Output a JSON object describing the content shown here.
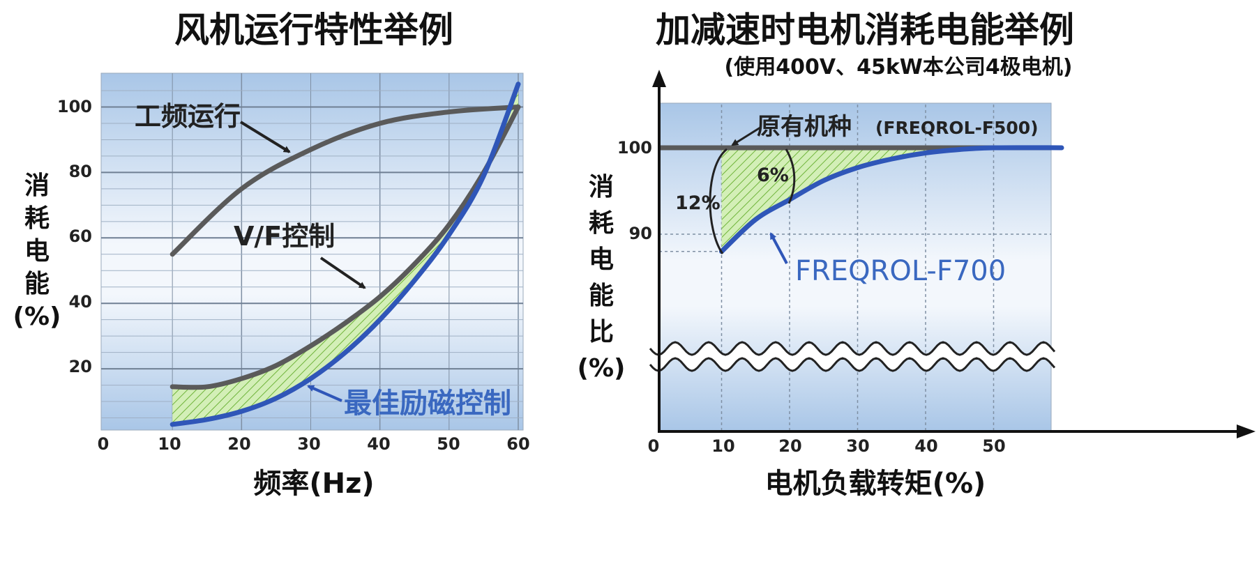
{
  "colors": {
    "gray_line": "#5a5a5a",
    "blue_line": "#2f56b8",
    "label_blue": "#3a68c0",
    "hatch_green": "#8ccf52",
    "bg_top": "#a9c6e7",
    "bg_mid": "#eef4fb"
  },
  "chart_data": [
    {
      "type": "line",
      "title": "风机运行特性举例",
      "xlabel": "频率(Hz)",
      "ylabel": "消耗电能(%)",
      "xlim": [
        0,
        60
      ],
      "ylim": [
        0,
        100
      ],
      "x_ticks": [
        "0",
        "10",
        "20",
        "30",
        "40",
        "50",
        "60"
      ],
      "y_ticks": [
        "20",
        "40",
        "60",
        "80",
        "100"
      ],
      "grid": true,
      "series": [
        {
          "name": "工频运行",
          "color": "#5a5a5a",
          "x": [
            10,
            20,
            30,
            40,
            50,
            60
          ],
          "y": [
            55,
            75,
            87,
            95,
            98.5,
            100
          ]
        },
        {
          "name": "V/F控制",
          "color": "#5a5a5a",
          "x": [
            10,
            15,
            20,
            25,
            30,
            35,
            40,
            45,
            50,
            55,
            60
          ],
          "y": [
            14.5,
            14.5,
            17,
            21,
            27,
            34,
            42,
            52,
            64,
            80,
            100
          ]
        },
        {
          "name": "最佳励磁控制",
          "color": "#2f56b8",
          "x": [
            10,
            15,
            20,
            25,
            30,
            35,
            40,
            45,
            50,
            55,
            60
          ],
          "y": [
            3,
            4.5,
            7,
            11,
            17,
            25,
            35,
            47,
            61,
            79,
            107
          ]
        }
      ],
      "annotations": [
        "工频运行",
        "V/F控制",
        "最佳励磁控制"
      ]
    },
    {
      "type": "line",
      "title": "加减速时电机消耗电能举例",
      "subtitle": "(使用400V、45kW本公司4极电机)",
      "xlabel": "电机负载转矩(%)",
      "ylabel": "消耗电能比(%)",
      "xlim": [
        0,
        60
      ],
      "ylim": [
        80,
        105
      ],
      "x_ticks": [
        "0",
        "10",
        "20",
        "30",
        "40",
        "50"
      ],
      "y_ticks": [
        "90",
        "100"
      ],
      "grid": true,
      "axis_break": true,
      "series": [
        {
          "name": "原有机种 (FREQROL-F500)",
          "color": "#5a5a5a",
          "x": [
            0,
            60
          ],
          "y": [
            100,
            100
          ]
        },
        {
          "name": "FREQROL-F700",
          "color": "#2f56b8",
          "x": [
            10,
            15,
            20,
            25,
            30,
            35,
            40,
            45,
            50,
            60
          ],
          "y": [
            88,
            91.7,
            94,
            96.2,
            97.7,
            98.7,
            99.4,
            99.8,
            100,
            100
          ]
        }
      ],
      "annotations": [
        "原有机种",
        "(FREQROL-F500)",
        "FREQROL-F700",
        "12%",
        "6%"
      ]
    }
  ]
}
